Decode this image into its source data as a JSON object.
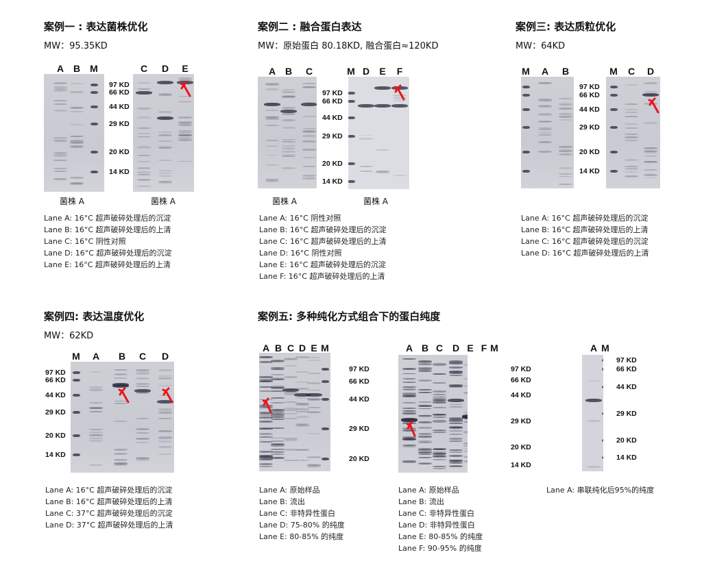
{
  "case1": {
    "title": "案例一 : 表达菌株优化",
    "mw": "MW：95.35KD",
    "gel1_lanes": [
      "A",
      "B",
      "M"
    ],
    "gel2_lanes": [
      "C",
      "D",
      "E"
    ],
    "markers": [
      "97 KD",
      "66 KD",
      "44 KD",
      "29 KD",
      "20 KD",
      "14 KD"
    ],
    "caption1": "菌株 A",
    "caption2": "菌株 A",
    "legend": [
      "Lane A: 16°C  超声破碎处理后的沉淀",
      "Lane B: 16°C  超声破碎处理后的上清",
      "Lane C: 16°C  阴性对照",
      "Lane D: 16°C  超声破碎处理后的沉淀",
      "Lane E: 16°C  超声破碎处理后的上清"
    ]
  },
  "case2": {
    "title": "案例二 : 融合蛋白表达",
    "mw": "MW：原始蛋白 80.18KD, 融合蛋白≈120KD",
    "gel1_lanes": [
      "A",
      "B",
      "C"
    ],
    "gel2_lanes": [
      "M",
      "D",
      "E",
      "F"
    ],
    "markers": [
      "97 KD",
      "66 KD",
      "44 KD",
      "29 KD",
      "20 KD",
      "14 KD"
    ],
    "caption1": "菌株 A",
    "caption2": "菌株 A",
    "legend": [
      "Lane A: 16°C  阴性对照",
      "Lane B: 16°C  超声破碎处理后的沉淀",
      "Lane C: 16°C  超声破碎处理后的上清",
      "Lane D: 16°C  阴性对照",
      "Lane E: 16°C  超声破碎处理后的沉淀",
      "Lane F: 16°C  超声破碎处理后的上清"
    ]
  },
  "case3": {
    "title": "案例三: 表达质粒优化",
    "mw": "MW：64KD",
    "gel1_lanes": [
      "M",
      "A",
      "B"
    ],
    "gel2_lanes": [
      "M",
      "C",
      "D"
    ],
    "markers": [
      "97 KD",
      "66 KD",
      "44 KD",
      "29 KD",
      "20 KD",
      "14 KD"
    ],
    "legend": [
      "Lane A: 16°C  超声破碎处理后的沉淀",
      "Lane B: 16°C  超声破碎处理后的上清",
      "Lane C: 16°C  超声破碎处理后的沉淀",
      "Lane D: 16°C  超声破碎处理后的上清"
    ]
  },
  "case4": {
    "title": "案例四: 表达温度优化",
    "mw": "MW：62KD",
    "gel_lanes": [
      "M",
      "A",
      "B",
      "C",
      "D"
    ],
    "markers": [
      "97 KD",
      "66 KD",
      "44 KD",
      "29 KD",
      "20 KD",
      "14 KD"
    ],
    "legend": [
      "Lane A: 16°C  超声破碎处理后的沉淀",
      "Lane B: 16°C  超声破碎处理后的上清",
      "Lane C: 37°C  超声破碎处理后的沉淀",
      "Lane D: 37°C  超声破碎处理后的上清"
    ]
  },
  "case5": {
    "title": "案例五: 多种纯化方式组合下的蛋白纯度",
    "gel1_lanes": [
      "A",
      "B",
      "C",
      "D",
      "E",
      "M"
    ],
    "gel1_markers": [
      "97 KD",
      "66 KD",
      "44 KD",
      "29 KD",
      "20 KD"
    ],
    "gel2_lanes": [
      "A",
      "B",
      "C",
      "D",
      "E",
      "F",
      "M"
    ],
    "gel2_markers": [
      "97 KD",
      "66 KD",
      "44 KD",
      "29 KD",
      "20 KD",
      "14 KD"
    ],
    "gel3_lanes": [
      "A",
      "M"
    ],
    "gel3_markers": [
      "97 KD",
      "66 KD",
      "44 KD",
      "29 KD",
      "20 KD",
      "14 KD"
    ],
    "legend1": [
      "Lane A:  原始样品",
      "Lane B:  流出",
      "Lane C:  非特异性蛋白",
      "Lane D:  75-80% 的纯度",
      "Lane E:  80-85% 的纯度"
    ],
    "legend2": [
      "Lane A:  原始样品",
      "Lane B:  流出",
      "Lane C:  非特异性蛋白",
      "Lane D:  非特异性蛋白",
      "Lane E:  80-85% 的纯度",
      "Lane F:  90-95% 的纯度"
    ],
    "legend3": [
      "Lane A:  串联纯化后95%的纯度"
    ]
  },
  "colors": {
    "arrow": "#e8161b",
    "gel": "#cbccd3",
    "band": "#3a3b48"
  }
}
